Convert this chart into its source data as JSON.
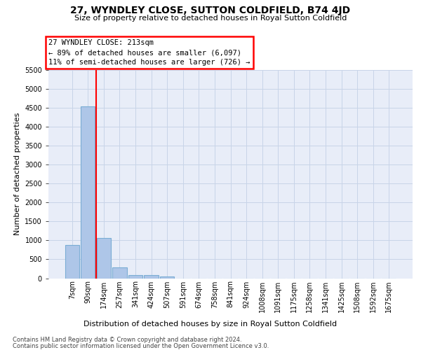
{
  "title": "27, WYNDLEY CLOSE, SUTTON COLDFIELD, B74 4JD",
  "subtitle": "Size of property relative to detached houses in Royal Sutton Coldfield",
  "xlabel": "Distribution of detached houses by size in Royal Sutton Coldfield",
  "ylabel": "Number of detached properties",
  "footnote1": "Contains HM Land Registry data © Crown copyright and database right 2024.",
  "footnote2": "Contains public sector information licensed under the Open Government Licence v3.0.",
  "bar_labels": [
    "7sqm",
    "90sqm",
    "174sqm",
    "257sqm",
    "341sqm",
    "424sqm",
    "507sqm",
    "591sqm",
    "674sqm",
    "758sqm",
    "841sqm",
    "924sqm",
    "1008sqm",
    "1091sqm",
    "1175sqm",
    "1258sqm",
    "1341sqm",
    "1425sqm",
    "1508sqm",
    "1592sqm",
    "1675sqm"
  ],
  "bar_values": [
    870,
    4530,
    1055,
    280,
    90,
    80,
    55,
    0,
    0,
    0,
    0,
    0,
    0,
    0,
    0,
    0,
    0,
    0,
    0,
    0,
    0
  ],
  "bar_color": "#aec6e8",
  "bar_edge_color": "#7aadd4",
  "vline_pos": 1.5,
  "vline_color": "red",
  "annotation_line1": "27 WYNDLEY CLOSE: 213sqm",
  "annotation_line2": "← 89% of detached houses are smaller (6,097)",
  "annotation_line3": "11% of semi-detached houses are larger (726) →",
  "annotation_box_color": "white",
  "annotation_box_edge_color": "red",
  "ylim_max": 5500,
  "yticks": [
    0,
    500,
    1000,
    1500,
    2000,
    2500,
    3000,
    3500,
    4000,
    4500,
    5000,
    5500
  ],
  "grid_color": "#c8d4e8",
  "bg_color": "#e8edf8",
  "title_fontsize": 10,
  "subtitle_fontsize": 8,
  "ylabel_fontsize": 8,
  "xlabel_fontsize": 8,
  "tick_fontsize": 7,
  "footnote_fontsize": 6
}
